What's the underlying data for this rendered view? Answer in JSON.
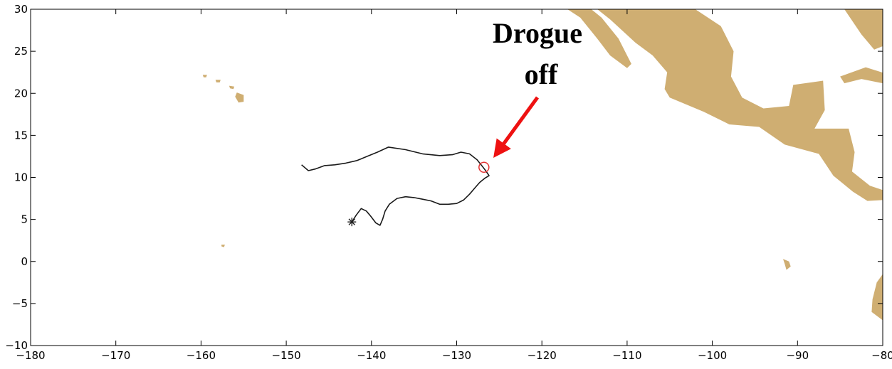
{
  "chart_data": {
    "type": "map-track",
    "xlim": [
      -180,
      -80
    ],
    "ylim": [
      -10,
      30
    ],
    "x_ticks": [
      -180,
      -170,
      -160,
      -150,
      -140,
      -130,
      -120,
      -110,
      -100,
      -90,
      -80
    ],
    "y_ticks": [
      -10,
      -5,
      0,
      5,
      10,
      15,
      20,
      25,
      30
    ],
    "x_tick_labels": [
      "−180",
      "−170",
      "−160",
      "−150",
      "−140",
      "−130",
      "−120",
      "−110",
      "−100",
      "−90",
      "−80"
    ],
    "y_tick_labels": [
      "−10",
      "−5",
      "0",
      "5",
      "10",
      "15",
      "20",
      "25",
      "30"
    ],
    "annotation": {
      "line1": "Drogue",
      "line2": "off"
    },
    "colors": {
      "land": "#cfae72",
      "track": "#1a1a1a",
      "arrow": "#ee1111",
      "marker": "#e33333"
    },
    "start_marker": {
      "lon": -142.3,
      "lat": 4.7,
      "symbol": "*"
    },
    "drogue_off": {
      "lon": -126.8,
      "lat": 11.2,
      "symbol": "circle"
    },
    "track": [
      [
        -142.3,
        4.7
      ],
      [
        -141.8,
        5.5
      ],
      [
        -141.2,
        6.3
      ],
      [
        -140.6,
        6.0
      ],
      [
        -140.1,
        5.4
      ],
      [
        -139.5,
        4.6
      ],
      [
        -139.0,
        4.3
      ],
      [
        -138.7,
        5.0
      ],
      [
        -138.4,
        6.0
      ],
      [
        -137.9,
        6.8
      ],
      [
        -137.0,
        7.5
      ],
      [
        -136.0,
        7.7
      ],
      [
        -135.0,
        7.6
      ],
      [
        -134.0,
        7.4
      ],
      [
        -133.0,
        7.2
      ],
      [
        -132.0,
        6.8
      ],
      [
        -131.0,
        6.8
      ],
      [
        -130.0,
        6.9
      ],
      [
        -129.2,
        7.3
      ],
      [
        -128.5,
        8.0
      ],
      [
        -127.9,
        8.7
      ],
      [
        -127.3,
        9.4
      ],
      [
        -126.7,
        9.9
      ],
      [
        -126.2,
        10.2
      ],
      [
        -126.6,
        10.8
      ],
      [
        -126.9,
        11.2
      ],
      [
        -127.6,
        12.1
      ],
      [
        -128.5,
        12.8
      ],
      [
        -129.5,
        13.0
      ],
      [
        -130.5,
        12.7
      ],
      [
        -132.0,
        12.6
      ],
      [
        -134.0,
        12.8
      ],
      [
        -136.0,
        13.3
      ],
      [
        -138.0,
        13.6
      ],
      [
        -139.3,
        13.0
      ],
      [
        -140.5,
        12.5
      ],
      [
        -141.7,
        12.0
      ],
      [
        -143.0,
        11.7
      ],
      [
        -144.3,
        11.5
      ],
      [
        -145.5,
        11.4
      ],
      [
        -146.6,
        11.0
      ],
      [
        -147.4,
        10.8
      ],
      [
        -148.2,
        11.5
      ]
    ],
    "land_polygons": [
      [
        [
          -117.0,
          30.0
        ],
        [
          -110.0,
          30.0
        ],
        [
          -102.0,
          30.0
        ],
        [
          -99.0,
          28.0
        ],
        [
          -97.5,
          25.0
        ],
        [
          -97.8,
          22.0
        ],
        [
          -96.5,
          19.5
        ],
        [
          -94.0,
          18.2
        ],
        [
          -91.0,
          18.5
        ],
        [
          -90.5,
          21.0
        ],
        [
          -87.0,
          21.5
        ],
        [
          -86.8,
          18.0
        ],
        [
          -88.0,
          15.8
        ],
        [
          -84.0,
          15.8
        ],
        [
          -83.3,
          13.0
        ],
        [
          -83.6,
          10.7
        ],
        [
          -81.5,
          9.0
        ],
        [
          -80.0,
          8.5
        ],
        [
          -80.0,
          7.3
        ],
        [
          -81.8,
          7.2
        ],
        [
          -83.5,
          8.3
        ],
        [
          -85.8,
          10.2
        ],
        [
          -87.5,
          12.8
        ],
        [
          -91.5,
          13.9
        ],
        [
          -94.5,
          16.0
        ],
        [
          -98.0,
          16.3
        ],
        [
          -101.0,
          17.8
        ],
        [
          -105.0,
          19.5
        ],
        [
          -105.6,
          20.5
        ],
        [
          -105.3,
          22.5
        ],
        [
          -107.0,
          24.5
        ],
        [
          -109.0,
          26.0
        ],
        [
          -112.0,
          28.8
        ],
        [
          -113.5,
          30.0
        ]
      ],
      [
        [
          -117.0,
          30.0
        ],
        [
          -115.5,
          29.0
        ],
        [
          -113.5,
          26.5
        ],
        [
          -112.0,
          24.5
        ],
        [
          -110.0,
          23.0
        ],
        [
          -109.5,
          23.5
        ],
        [
          -111.0,
          26.5
        ],
        [
          -113.0,
          29.0
        ],
        [
          -114.2,
          30.0
        ]
      ],
      [
        [
          -84.5,
          30.0
        ],
        [
          -82.5,
          27.0
        ],
        [
          -81.0,
          25.2
        ],
        [
          -80.0,
          25.6
        ],
        [
          -80.0,
          30.0
        ]
      ],
      [
        [
          -85.0,
          22.0
        ],
        [
          -82.0,
          23.1
        ],
        [
          -79.8,
          22.4
        ],
        [
          -80.0,
          21.2
        ],
        [
          -82.5,
          21.7
        ],
        [
          -84.5,
          21.2
        ]
      ],
      [
        [
          -80.0,
          -1.5
        ],
        [
          -80.7,
          -2.5
        ],
        [
          -81.2,
          -4.5
        ],
        [
          -81.3,
          -6.0
        ],
        [
          -80.0,
          -7.0
        ]
      ],
      [
        [
          -155.8,
          20.1
        ],
        [
          -155.0,
          19.8
        ],
        [
          -155.0,
          19.0
        ],
        [
          -155.6,
          18.9
        ],
        [
          -156.0,
          19.6
        ]
      ],
      [
        [
          -156.7,
          20.9
        ],
        [
          -156.1,
          20.8
        ],
        [
          -156.2,
          20.5
        ],
        [
          -156.6,
          20.6
        ]
      ],
      [
        [
          -158.3,
          21.6
        ],
        [
          -157.7,
          21.6
        ],
        [
          -157.8,
          21.3
        ],
        [
          -158.2,
          21.3
        ]
      ],
      [
        [
          -159.8,
          22.2
        ],
        [
          -159.3,
          22.2
        ],
        [
          -159.4,
          21.9
        ],
        [
          -159.7,
          21.9
        ]
      ],
      [
        [
          -91.7,
          0.3
        ],
        [
          -91.0,
          0.0
        ],
        [
          -90.8,
          -0.6
        ],
        [
          -91.3,
          -1.0
        ],
        [
          -91.5,
          -0.3
        ]
      ],
      [
        [
          -157.6,
          2.0
        ],
        [
          -157.2,
          2.0
        ],
        [
          -157.3,
          1.7
        ],
        [
          -157.6,
          1.8
        ]
      ]
    ]
  }
}
